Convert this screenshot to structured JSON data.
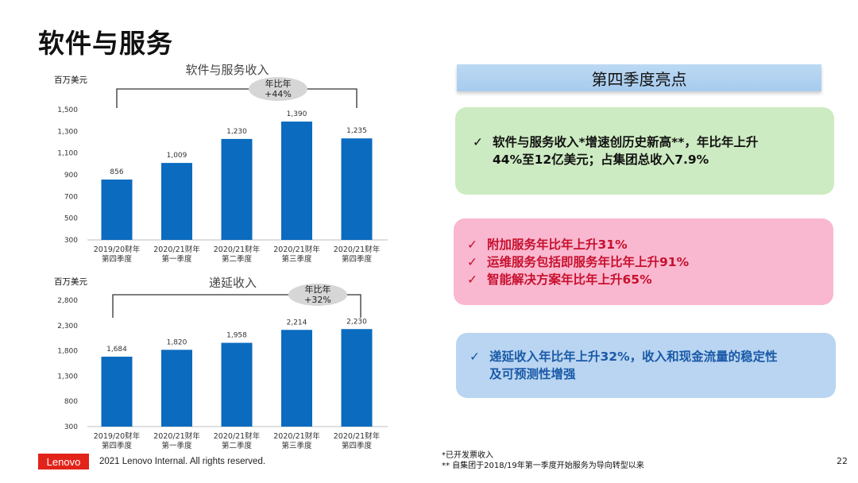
{
  "page": {
    "title": "软件与服务",
    "page_number": "22"
  },
  "colors": {
    "bar": "#0b6bbf",
    "axis": "#bfbfbf",
    "bracket": "#333333",
    "ellipse": "#d6d6d6"
  },
  "chart_data": [
    {
      "type": "bar",
      "title": "软件与服务收入",
      "ylabel": "百万美元",
      "categories": [
        [
          "2019/20财年",
          "第四季度"
        ],
        [
          "2020/21财年",
          "第一季度"
        ],
        [
          "2020/21财年",
          "第二季度"
        ],
        [
          "2020/21财年",
          "第三季度"
        ],
        [
          "2020/21财年",
          "第四季度"
        ]
      ],
      "values": [
        856,
        1009,
        1230,
        1390,
        1235
      ],
      "value_labels": [
        "856",
        "1,009",
        "1,230",
        "1,390",
        "1,235"
      ],
      "ylim": [
        300,
        1500
      ],
      "yticks": [
        300,
        500,
        700,
        900,
        1100,
        1300,
        1500
      ],
      "ytick_labels": [
        "300",
        "500",
        "700",
        "900",
        "1,100",
        "1,300",
        "1,500"
      ],
      "annotation": {
        "line1": "年比年",
        "line2": "+44%",
        "from_index": 0,
        "to_index": 4
      }
    },
    {
      "type": "bar",
      "title": "递延收入",
      "ylabel": "百万美元",
      "categories": [
        [
          "2019/20财年",
          "第四季度"
        ],
        [
          "2020/21财年",
          "第一季度"
        ],
        [
          "2020/21财年",
          "第二季度"
        ],
        [
          "2020/21财年",
          "第三季度"
        ],
        [
          "2020/21财年",
          "第四季度"
        ]
      ],
      "values": [
        1684,
        1820,
        1958,
        2214,
        2230
      ],
      "value_labels": [
        "1,684",
        "1,820",
        "1,958",
        "2,214",
        "2,230"
      ],
      "ylim": [
        300,
        2800
      ],
      "yticks": [
        300,
        800,
        1300,
        1800,
        2300,
        2800
      ],
      "ytick_labels": [
        "300",
        "800",
        "1,300",
        "1,800",
        "2,300",
        "2,800"
      ],
      "annotation": {
        "line1": "年比年",
        "line2": "+32%",
        "from_index": 0,
        "to_index": 4
      }
    }
  ],
  "highlights": {
    "header": "第四季度亮点",
    "box1": {
      "check": "✓",
      "line1": "软件与服务收入*增速创历史新高**，年比年上升",
      "line2": "44%至12亿美元；占集团总收入7.9%"
    },
    "box2": {
      "items": [
        {
          "check": "✓",
          "text": "附加服务年比年上升31%"
        },
        {
          "check": "✓",
          "text": "运维服务包括即服务年比年上升91%"
        },
        {
          "check": "✓",
          "text": "智能解决方案年比年上升65%"
        }
      ]
    },
    "box3": {
      "check": "✓",
      "line1": "递延收入年比年上升32%，收入和现金流量的稳定性",
      "line2": "及可预测性增强"
    }
  },
  "footnotes": {
    "note1": "*已开发票收入",
    "note2": "** 自集团于2018/19年第一季度开始服务为导向转型以来"
  },
  "footer": {
    "logo_text": "Lenovo",
    "copyright": "2021 Lenovo Internal. All rights reserved."
  }
}
